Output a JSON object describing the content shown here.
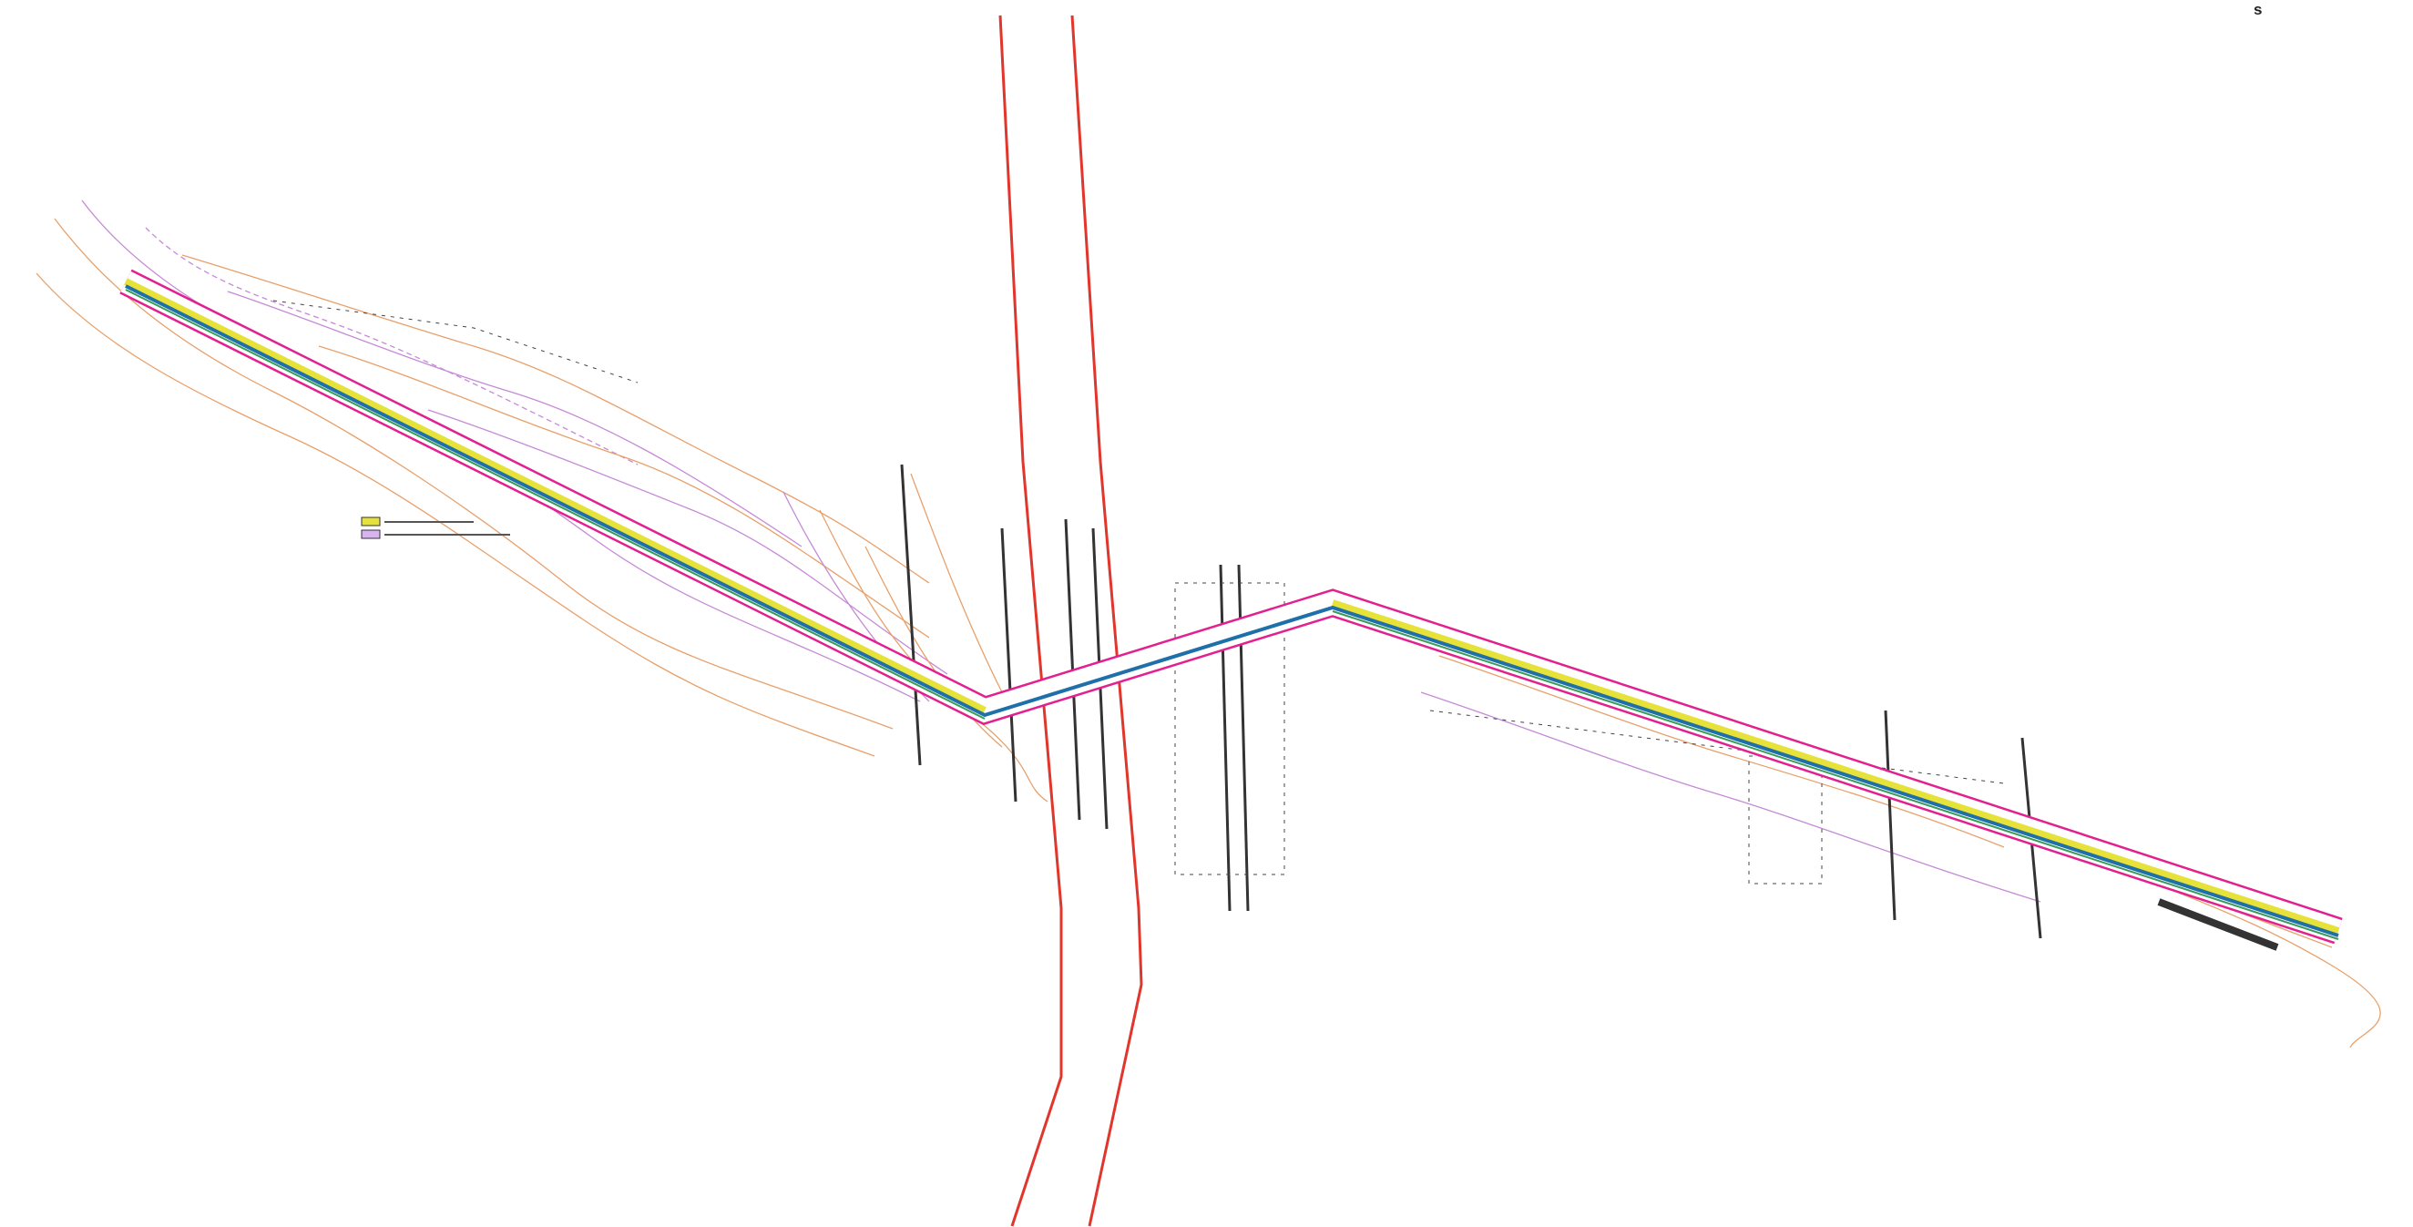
{
  "corner_label": "s"
}
